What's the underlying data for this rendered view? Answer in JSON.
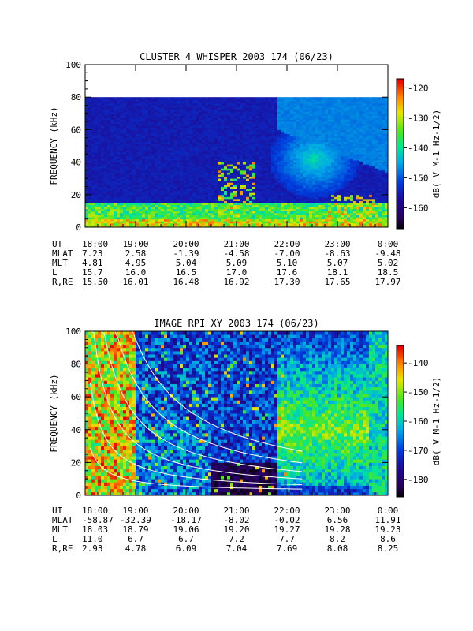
{
  "chart_data": [
    {
      "type": "heatmap",
      "title": "CLUSTER 4 WHISPER 2003 174 (06/23)",
      "ylabel": "FREQUENCY (kHz)",
      "ylim": [
        0,
        100
      ],
      "yticks": [
        "0",
        "20",
        "40",
        "60",
        "80",
        "100"
      ],
      "xlim_hours": [
        18,
        24
      ],
      "xticks": [
        "18:00",
        "19:00",
        "20:00",
        "21:00",
        "22:00",
        "23:00",
        "0:00"
      ],
      "colorbar": {
        "label": "dB( V M-1 Hz-1/2)",
        "range": [
          -167,
          -117
        ],
        "ticks": [
          "-120",
          "-130",
          "-140",
          "-150",
          "-160"
        ]
      },
      "data_top_khz": 80,
      "features": "Dark-blue background (~-160 dB) 0-80 kHz; intense broadband emission below ~15 kHz all day; bursts up to ~40 kHz near 21:00; diffuse enhancement (~-140 dB) centered near 40 kHz around 22:30-23:00",
      "ephemeris": {
        "rows": [
          {
            "label": "UT",
            "values": [
              "18:00",
              "19:00",
              "20:00",
              "21:00",
              "22:00",
              "23:00",
              "0:00"
            ]
          },
          {
            "label": "MLAT",
            "values": [
              "7.23",
              "2.58",
              "-1.39",
              "-4.58",
              "-7.00",
              "-8.63",
              "-9.48"
            ]
          },
          {
            "label": "MLT",
            "values": [
              "4.81",
              "4.95",
              "5.04",
              "5.09",
              "5.10",
              "5.07",
              "5.02"
            ]
          },
          {
            "label": "L",
            "values": [
              "15.7",
              "16.0",
              "16.5",
              "17.0",
              "17.6",
              "18.1",
              "18.5"
            ]
          },
          {
            "label": "R,RE",
            "values": [
              "15.50",
              "16.01",
              "16.48",
              "16.92",
              "17.30",
              "17.65",
              "17.97"
            ]
          }
        ]
      }
    },
    {
      "type": "heatmap",
      "title": "IMAGE RPI XY 2003 174 (06/23)",
      "ylabel": "FREQUENCY (kHz)",
      "ylim": [
        0,
        100
      ],
      "yticks": [
        "0",
        "20",
        "40",
        "60",
        "80",
        "100"
      ],
      "xlim_hours": [
        18,
        24
      ],
      "xticks": [
        "18:00",
        "19:00",
        "20:00",
        "21:00",
        "22:00",
        "23:00",
        "0:00"
      ],
      "colorbar": {
        "label": "dB( V M-1 Hz-1/2)",
        "range": [
          -186,
          -134
        ],
        "ticks": [
          "-140",
          "-150",
          "-160",
          "-170",
          "-180"
        ]
      },
      "features": "Intense (red/yellow) emission 18:00-19:00 across all frequencies; dark (~-180 dB) region at low frequencies 20:30-21:45; broadband green/yellow emission 22:00-23:30 peaking near 40 kHz; white curves are overlaid plasma-frequency model traces",
      "ephemeris": {
        "rows": [
          {
            "label": "UT",
            "values": [
              "18:00",
              "19:00",
              "20:00",
              "21:00",
              "22:00",
              "23:00",
              "0:00"
            ]
          },
          {
            "label": "MLAT",
            "values": [
              "-58.87",
              "-32.39",
              "-18.17",
              "-8.02",
              "-0.02",
              "6.56",
              "11.91"
            ]
          },
          {
            "label": "MLT",
            "values": [
              "18.03",
              "18.79",
              "19.06",
              "19.20",
              "19.27",
              "19.28",
              "19.23"
            ]
          },
          {
            "label": "L",
            "values": [
              "11.0",
              "6.7",
              "6.7",
              "7.2",
              "7.7",
              "8.2",
              "8.6"
            ]
          },
          {
            "label": "R,RE",
            "values": [
              "2.93",
              "4.78",
              "6.09",
              "7.04",
              "7.69",
              "8.08",
              "8.25"
            ]
          }
        ]
      }
    }
  ]
}
